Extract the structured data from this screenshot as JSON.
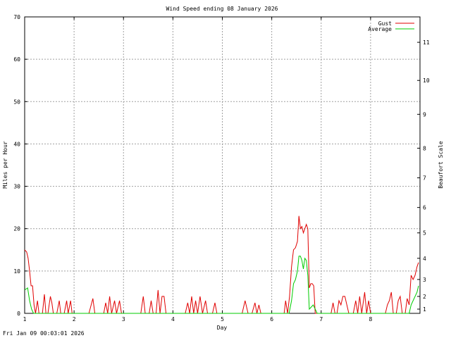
{
  "chart_data": {
    "type": "line",
    "title": "Wind Speed ending 08 January 2026",
    "xlabel": "Day",
    "ylabel": "Miles per Hour",
    "y2label": "Beaufort Scale",
    "xlim": [
      1,
      9
    ],
    "ylim": [
      0,
      70
    ],
    "x_ticks": [
      1,
      2,
      3,
      4,
      5,
      6,
      7,
      8
    ],
    "y_ticks": [
      0,
      10,
      20,
      30,
      40,
      50,
      60,
      70
    ],
    "y2_ticks": [
      {
        "label": "1",
        "mph": 1
      },
      {
        "label": "2",
        "mph": 4
      },
      {
        "label": "3",
        "mph": 8
      },
      {
        "label": "4",
        "mph": 13
      },
      {
        "label": "5",
        "mph": 19
      },
      {
        "label": "6",
        "mph": 25
      },
      {
        "label": "7",
        "mph": 32
      },
      {
        "label": "8",
        "mph": 39
      },
      {
        "label": "9",
        "mph": 47
      },
      {
        "label": "10",
        "mph": 55
      },
      {
        "label": "11",
        "mph": 64
      }
    ],
    "grid": true,
    "legend_position": "top-right",
    "series": [
      {
        "name": "Gust",
        "color": "#e00000",
        "points": [
          [
            1.0,
            15
          ],
          [
            1.04,
            14.5
          ],
          [
            1.07,
            13
          ],
          [
            1.1,
            10
          ],
          [
            1.13,
            6.5
          ],
          [
            1.16,
            6.5
          ],
          [
            1.19,
            2
          ],
          [
            1.22,
            0
          ],
          [
            1.26,
            3
          ],
          [
            1.29,
            0
          ],
          [
            1.32,
            0
          ],
          [
            1.36,
            0
          ],
          [
            1.4,
            4.5
          ],
          [
            1.43,
            0
          ],
          [
            1.47,
            0
          ],
          [
            1.52,
            4
          ],
          [
            1.55,
            2.5
          ],
          [
            1.58,
            0
          ],
          [
            1.65,
            0
          ],
          [
            1.7,
            3
          ],
          [
            1.73,
            0
          ],
          [
            1.8,
            0
          ],
          [
            1.85,
            3
          ],
          [
            1.88,
            0
          ],
          [
            1.93,
            3
          ],
          [
            1.96,
            0
          ],
          [
            2.0,
            0
          ],
          [
            2.3,
            0
          ],
          [
            2.38,
            3.5
          ],
          [
            2.42,
            0
          ],
          [
            2.6,
            0
          ],
          [
            2.64,
            2.5
          ],
          [
            2.68,
            0
          ],
          [
            2.72,
            4
          ],
          [
            2.76,
            0
          ],
          [
            2.82,
            3
          ],
          [
            2.86,
            0
          ],
          [
            2.92,
            3
          ],
          [
            2.96,
            0
          ],
          [
            3.35,
            0
          ],
          [
            3.4,
            4
          ],
          [
            3.44,
            0
          ],
          [
            3.52,
            0
          ],
          [
            3.56,
            3
          ],
          [
            3.6,
            0
          ],
          [
            3.66,
            0
          ],
          [
            3.7,
            5.5
          ],
          [
            3.74,
            0
          ],
          [
            3.78,
            4
          ],
          [
            3.82,
            4
          ],
          [
            3.86,
            0
          ],
          [
            4.25,
            0
          ],
          [
            4.3,
            2.5
          ],
          [
            4.34,
            0
          ],
          [
            4.38,
            4
          ],
          [
            4.42,
            0
          ],
          [
            4.46,
            3
          ],
          [
            4.5,
            0
          ],
          [
            4.55,
            4
          ],
          [
            4.6,
            0
          ],
          [
            4.66,
            3
          ],
          [
            4.7,
            0
          ],
          [
            4.8,
            0
          ],
          [
            4.85,
            2.5
          ],
          [
            4.89,
            0
          ],
          [
            5.4,
            0
          ],
          [
            5.46,
            3
          ],
          [
            5.52,
            0
          ],
          [
            5.6,
            0
          ],
          [
            5.66,
            2.5
          ],
          [
            5.7,
            0
          ],
          [
            5.74,
            2
          ],
          [
            5.78,
            0
          ],
          [
            6.25,
            0
          ],
          [
            6.28,
            3
          ],
          [
            6.32,
            0
          ],
          [
            6.36,
            4
          ],
          [
            6.4,
            11
          ],
          [
            6.44,
            15
          ],
          [
            6.48,
            15.5
          ],
          [
            6.52,
            17
          ],
          [
            6.55,
            23
          ],
          [
            6.58,
            20
          ],
          [
            6.61,
            20.5
          ],
          [
            6.64,
            19
          ],
          [
            6.67,
            20
          ],
          [
            6.7,
            21
          ],
          [
            6.73,
            20
          ],
          [
            6.76,
            6
          ],
          [
            6.79,
            7
          ],
          [
            6.82,
            7
          ],
          [
            6.85,
            6.5
          ],
          [
            6.88,
            0
          ],
          [
            7.2,
            0
          ],
          [
            7.24,
            2.5
          ],
          [
            7.28,
            0
          ],
          [
            7.32,
            0
          ],
          [
            7.36,
            3
          ],
          [
            7.4,
            2
          ],
          [
            7.44,
            4
          ],
          [
            7.48,
            4
          ],
          [
            7.52,
            2
          ],
          [
            7.56,
            0
          ],
          [
            7.65,
            0
          ],
          [
            7.7,
            3
          ],
          [
            7.74,
            0
          ],
          [
            7.78,
            4
          ],
          [
            7.82,
            0
          ],
          [
            7.88,
            5
          ],
          [
            7.92,
            0
          ],
          [
            7.96,
            3
          ],
          [
            8.0,
            0
          ],
          [
            8.3,
            0
          ],
          [
            8.34,
            2
          ],
          [
            8.38,
            3
          ],
          [
            8.42,
            5
          ],
          [
            8.46,
            0
          ],
          [
            8.52,
            0
          ],
          [
            8.56,
            3
          ],
          [
            8.6,
            4
          ],
          [
            8.64,
            0
          ],
          [
            8.7,
            0
          ],
          [
            8.74,
            3.5
          ],
          [
            8.78,
            2
          ],
          [
            8.82,
            9
          ],
          [
            8.86,
            8
          ],
          [
            8.9,
            9
          ],
          [
            8.94,
            11
          ],
          [
            8.97,
            12
          ]
        ]
      },
      {
        "name": "Average",
        "color": "#00cc00",
        "points": [
          [
            1.0,
            5.5
          ],
          [
            1.06,
            6
          ],
          [
            1.1,
            3
          ],
          [
            1.14,
            1
          ],
          [
            1.18,
            0
          ],
          [
            6.35,
            0
          ],
          [
            6.4,
            3
          ],
          [
            6.44,
            7
          ],
          [
            6.48,
            8
          ],
          [
            6.52,
            10
          ],
          [
            6.55,
            13.5
          ],
          [
            6.58,
            13.5
          ],
          [
            6.61,
            12.5
          ],
          [
            6.64,
            10.5
          ],
          [
            6.67,
            13
          ],
          [
            6.7,
            12.5
          ],
          [
            6.73,
            9
          ],
          [
            6.76,
            1
          ],
          [
            6.8,
            1.5
          ],
          [
            6.84,
            2
          ],
          [
            6.88,
            1
          ],
          [
            6.92,
            0
          ],
          [
            8.78,
            0
          ],
          [
            8.82,
            2
          ],
          [
            8.86,
            3
          ],
          [
            8.9,
            4
          ],
          [
            8.94,
            5
          ],
          [
            8.97,
            6.5
          ]
        ]
      }
    ]
  },
  "footer_timestamp": "Fri Jan 09 00:03:01 2026"
}
